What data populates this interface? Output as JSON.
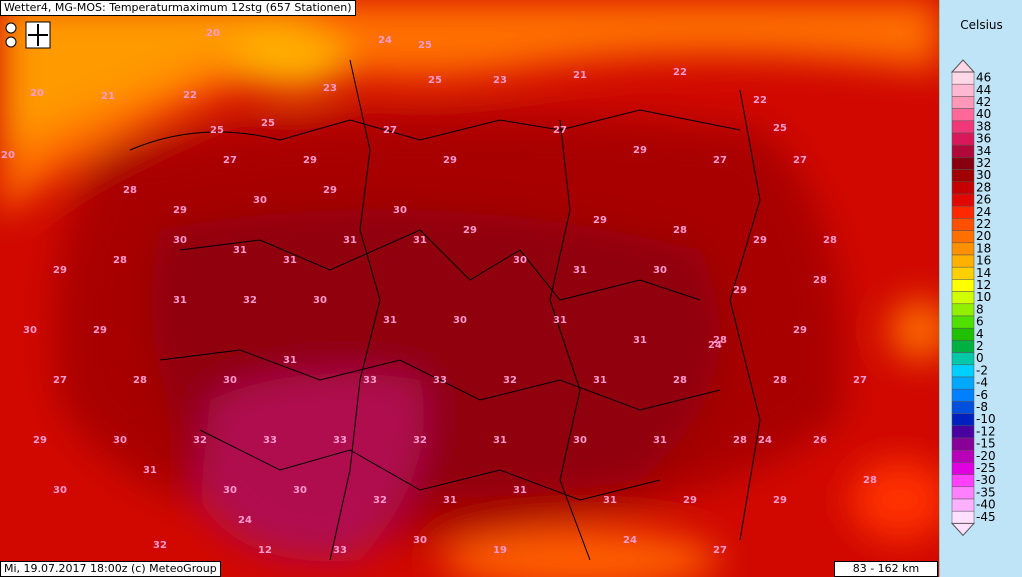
{
  "header": {
    "title": "Wetter4, MG-MOS: Temperaturmaximum 12stg (657 Stationen)"
  },
  "footer": {
    "text": "Mi, 19.07.2017 18:00z (c) MeteoGroup",
    "scale": "83 - 162 km"
  },
  "legend": {
    "title": "Celsius",
    "items": [
      {
        "label": "46",
        "color": "#ffd8e8"
      },
      {
        "label": "44",
        "color": "#ffb8d0"
      },
      {
        "label": "42",
        "color": "#ff98b8"
      },
      {
        "label": "40",
        "color": "#ff6898"
      },
      {
        "label": "38",
        "color": "#f03878"
      },
      {
        "label": "36",
        "color": "#d81858"
      },
      {
        "label": "34",
        "color": "#b00838"
      },
      {
        "label": "32",
        "color": "#880010"
      },
      {
        "label": "30",
        "color": "#a00000"
      },
      {
        "label": "28",
        "color": "#c40000"
      },
      {
        "label": "26",
        "color": "#e00800"
      },
      {
        "label": "24",
        "color": "#ff2800"
      },
      {
        "label": "22",
        "color": "#ff5000"
      },
      {
        "label": "20",
        "color": "#ff7000"
      },
      {
        "label": "18",
        "color": "#ff9000"
      },
      {
        "label": "16",
        "color": "#ffb000"
      },
      {
        "label": "14",
        "color": "#ffd000"
      },
      {
        "label": "12",
        "color": "#ffff00"
      },
      {
        "label": "10",
        "color": "#d0ff00"
      },
      {
        "label": "8",
        "color": "#90f000"
      },
      {
        "label": "6",
        "color": "#50e000"
      },
      {
        "label": "4",
        "color": "#20c000"
      },
      {
        "label": "2",
        "color": "#00b040"
      },
      {
        "label": "0",
        "color": "#00c8a8"
      },
      {
        "label": "-2",
        "color": "#00d0ff"
      },
      {
        "label": "-4",
        "color": "#00a8ff"
      },
      {
        "label": "-6",
        "color": "#0080ff"
      },
      {
        "label": "-8",
        "color": "#0050e0"
      },
      {
        "label": "-10",
        "color": "#0020c0"
      },
      {
        "label": "-12",
        "color": "#4800a0"
      },
      {
        "label": "-15",
        "color": "#880098"
      },
      {
        "label": "-20",
        "color": "#b800b8"
      },
      {
        "label": "-25",
        "color": "#e000e0"
      },
      {
        "label": "-30",
        "color": "#ff40ff"
      },
      {
        "label": "-35",
        "color": "#ff80ff"
      },
      {
        "label": "-40",
        "color": "#ffb0ff"
      },
      {
        "label": "-45",
        "color": "#ffe0ff"
      }
    ]
  },
  "stations": [
    20,
    20,
    21,
    20,
    25,
    25,
    22,
    23,
    24,
    25,
    25,
    23,
    21,
    22,
    22,
    25,
    27,
    29,
    27,
    29,
    27,
    29,
    27,
    27,
    28,
    29,
    30,
    29,
    30,
    29,
    29,
    28,
    29,
    28,
    29,
    28,
    30,
    31,
    31,
    31,
    31,
    30,
    31,
    30,
    29,
    28,
    30,
    29,
    31,
    32,
    30,
    31,
    30,
    31,
    31,
    28,
    29,
    27,
    28,
    30,
    31,
    33,
    33,
    32,
    31,
    28,
    28,
    27,
    29,
    30,
    32,
    33,
    33,
    32,
    31,
    30,
    31,
    28,
    26,
    30,
    31,
    30,
    30,
    32,
    31,
    31,
    31,
    29,
    29,
    28,
    32,
    12,
    33,
    30,
    19,
    24,
    27,
    24,
    24,
    24
  ]
}
